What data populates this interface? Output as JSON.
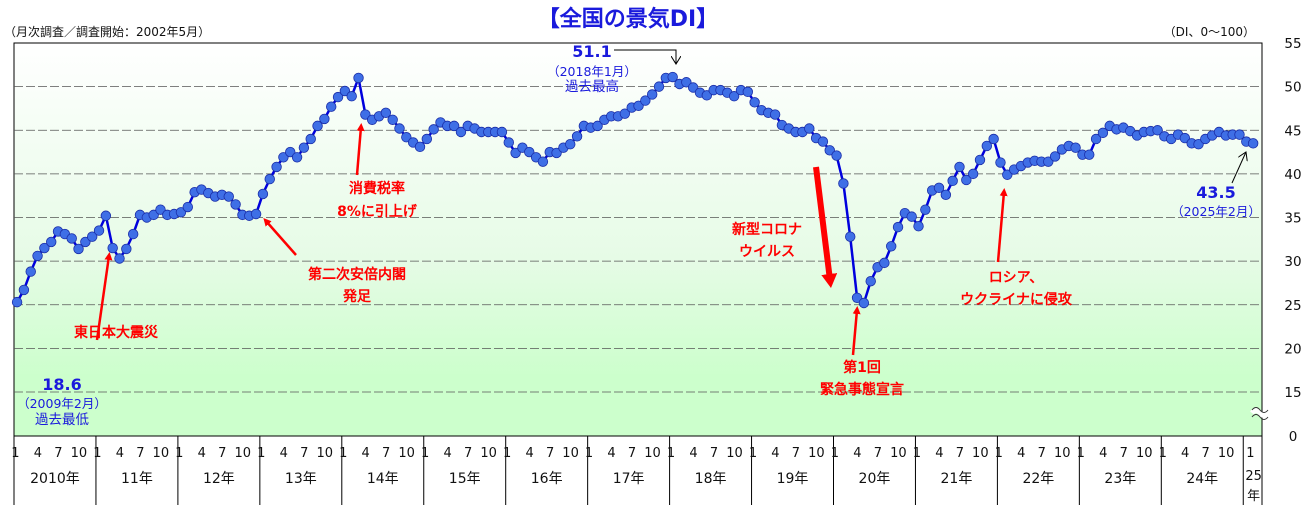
{
  "chart_data": {
    "type": "line",
    "title": "【全国の景気DI】",
    "subtitle_left": "（月次調査／調査開始：2002年5月）",
    "unit_label": "（DI、0～100）",
    "xlabel": "",
    "ylabel": "",
    "ylim": [
      0,
      55
    ],
    "y_axis_break": "between 0 and 15",
    "yticks": [
      "55",
      "50",
      "45",
      "40",
      "35",
      "30",
      "25",
      "20",
      "15",
      "0"
    ],
    "ytick_values": [
      55,
      50,
      45,
      40,
      35,
      30,
      25,
      20,
      15,
      0
    ],
    "grid": true,
    "month_ticks": [
      "1",
      "4",
      "7",
      "10"
    ],
    "years": [
      "2010年",
      "11年",
      "12年",
      "13年",
      "14年",
      "15年",
      "16年",
      "17年",
      "18年",
      "19年",
      "20年",
      "21年",
      "22年",
      "23年",
      "24年",
      "25年"
    ],
    "x_start": "2010-01",
    "x_end": "2025-02",
    "series": [
      {
        "name": "全国の景気DI",
        "color": "#0000dd",
        "marker_color": "#3f6fe6",
        "values": [
          25.3,
          26.7,
          28.8,
          30.6,
          31.5,
          32.2,
          33.4,
          33.1,
          32.6,
          31.4,
          32.2,
          32.8,
          33.5,
          35.2,
          31.5,
          30.3,
          31.4,
          33.1,
          35.3,
          35.0,
          35.3,
          35.9,
          35.3,
          35.4,
          35.6,
          36.2,
          37.9,
          38.2,
          37.8,
          37.4,
          37.6,
          37.4,
          36.5,
          35.3,
          35.2,
          35.4,
          37.7,
          39.4,
          40.8,
          41.9,
          42.5,
          41.9,
          43.0,
          44.0,
          45.5,
          46.3,
          47.7,
          48.8,
          49.5,
          48.9,
          51.0,
          46.8,
          46.2,
          46.6,
          47.0,
          46.2,
          45.2,
          44.2,
          43.6,
          43.1,
          44.0,
          45.1,
          45.9,
          45.5,
          45.5,
          44.8,
          45.5,
          45.2,
          44.8,
          44.8,
          44.8,
          44.8,
          43.6,
          42.4,
          43.0,
          42.5,
          41.9,
          41.4,
          42.5,
          42.4,
          43.0,
          43.4,
          44.3,
          45.5,
          45.3,
          45.5,
          46.2,
          46.6,
          46.6,
          46.9,
          47.6,
          47.8,
          48.4,
          49.1,
          50.0,
          51.0,
          51.1,
          50.3,
          50.5,
          49.9,
          49.3,
          49.0,
          49.6,
          49.6,
          49.3,
          48.9,
          49.6,
          49.4,
          48.2,
          47.3,
          47.0,
          46.8,
          45.6,
          45.2,
          44.8,
          44.8,
          45.2,
          44.1,
          43.7,
          42.7,
          42.1,
          38.9,
          32.8,
          25.8,
          25.2,
          27.7,
          29.3,
          29.8,
          31.7,
          33.9,
          35.5,
          35.1,
          34.0,
          35.9,
          38.1,
          38.4,
          37.6,
          39.2,
          40.8,
          39.3,
          40.0,
          41.6,
          43.2,
          44.0,
          41.3,
          39.9,
          40.5,
          40.9,
          41.3,
          41.5,
          41.4,
          41.4,
          42.0,
          42.8,
          43.2,
          43.0,
          42.2,
          42.2,
          44.0,
          44.7,
          45.5,
          45.1,
          45.3,
          44.9,
          44.4,
          44.8,
          44.9,
          45.0,
          44.3,
          44.0,
          44.5,
          44.1,
          43.5,
          43.4,
          44.0,
          44.4,
          44.8,
          44.4,
          44.5,
          44.5,
          43.7,
          43.5
        ]
      }
    ],
    "annotations": {
      "max_value": "51.1",
      "max_date": "（2018年1月）",
      "max_label": "過去最高",
      "min_value": "18.6",
      "min_date": "（2009年2月）",
      "min_label": "過去最低",
      "latest_value": "43.5",
      "latest_date": "（2025年2月）",
      "quake": "東日本大震災",
      "abe_1": "第二次安倍内閣",
      "abe_2": "発足",
      "tax_1": "消費税率",
      "tax_2": "8%に引上げ",
      "covid_1": "新型コロナ",
      "covid_2": "ウイルス",
      "emergency_1": "第1回",
      "emergency_2": "緊急事態宣言",
      "russia_1": "ロシア、",
      "russia_2": "ウクライナに侵攻"
    },
    "colors": {
      "grid_bg_top": "#ffffff",
      "grid_bg_bottom": "#ccffcc",
      "annotation_red": "#ff0000",
      "annotation_blue": "#1a1adc"
    }
  }
}
